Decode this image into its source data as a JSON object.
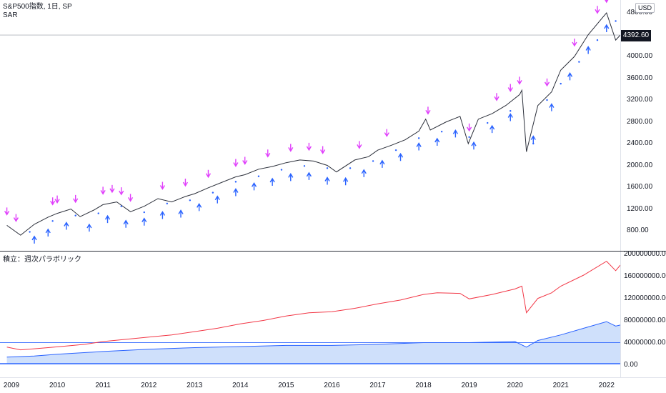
{
  "legend": {
    "symbol_line": "S&P500指数, 1日, SP",
    "indicator": "SAR"
  },
  "sub_legend": {
    "title": "積立：週次パラボリック"
  },
  "price_axis": {
    "currency_badge": "USD",
    "last_price": "4392.60",
    "ticks": [
      "4800.00",
      "4000.00",
      "3600.00",
      "3200.00",
      "2800.00",
      "2400.00",
      "2000.00",
      "1600.00",
      "1200.00",
      "800.00"
    ]
  },
  "sub_axis": {
    "ticks": [
      "200000000.00",
      "160000000.00",
      "120000000.00",
      "80000000.00",
      "40000000.00",
      "0.00"
    ]
  },
  "time_axis": {
    "ticks": [
      "2009",
      "2010",
      "2011",
      "2012",
      "2013",
      "2014",
      "2015",
      "2016",
      "2017",
      "2018",
      "2019",
      "2020",
      "2021",
      "2022"
    ]
  },
  "colors": {
    "price": "#2a2e39",
    "sar": "#2962ff",
    "buy": "#2962ff",
    "sell": "#e040fb",
    "equity": "#f23645",
    "invested": "#2962ff",
    "invested_fill": "#cfe0fb"
  },
  "chart_data": {
    "type": "line",
    "x_unit": "year",
    "price_series": {
      "x": [
        2008.9,
        2009.2,
        2009.5,
        2009.8,
        2010.0,
        2010.3,
        2010.5,
        2010.8,
        2011.0,
        2011.3,
        2011.6,
        2011.9,
        2012.2,
        2012.5,
        2012.8,
        2013.0,
        2013.3,
        2013.6,
        2013.9,
        2014.1,
        2014.4,
        2014.7,
        2015.0,
        2015.3,
        2015.6,
        2015.9,
        2016.1,
        2016.5,
        2016.8,
        2017.0,
        2017.3,
        2017.6,
        2017.9,
        2018.05,
        2018.15,
        2018.5,
        2018.8,
        2018.98,
        2019.2,
        2019.5,
        2019.8,
        2020.1,
        2020.15,
        2020.25,
        2020.5,
        2020.8,
        2021.0,
        2021.3,
        2021.6,
        2021.9,
        2022.0,
        2022.2,
        2022.3
      ],
      "values": [
        900,
        720,
        920,
        1050,
        1120,
        1200,
        1060,
        1180,
        1280,
        1330,
        1150,
        1250,
        1390,
        1330,
        1430,
        1480,
        1590,
        1690,
        1790,
        1830,
        1930,
        1980,
        2050,
        2100,
        2080,
        2000,
        1880,
        2100,
        2160,
        2280,
        2370,
        2470,
        2630,
        2850,
        2650,
        2800,
        2900,
        2400,
        2850,
        2950,
        3100,
        3300,
        3380,
        2250,
        3100,
        3350,
        3750,
        4000,
        4400,
        4700,
        4800,
        4300,
        4392
      ]
    },
    "sar_series": {
      "x": [
        2009.4,
        2009.9,
        2010.4,
        2010.9,
        2011.4,
        2011.9,
        2012.4,
        2012.9,
        2013.4,
        2013.9,
        2014.4,
        2014.9,
        2015.4,
        2015.9,
        2016.4,
        2016.9,
        2017.4,
        2017.9,
        2018.4,
        2019.0,
        2019.4,
        2019.9,
        2020.4,
        2020.7,
        2021.0,
        2021.4,
        2021.8,
        2022.2
      ],
      "values": [
        780,
        980,
        1080,
        1120,
        1250,
        1140,
        1300,
        1360,
        1500,
        1700,
        1800,
        1920,
        1990,
        1950,
        1950,
        2080,
        2280,
        2500,
        2620,
        2520,
        2780,
        3000,
        2400,
        3200,
        3500,
        3900,
        4300,
        4650
      ]
    },
    "buy_signals_x": [
      2009.5,
      2009.8,
      2010.2,
      2010.7,
      2011.1,
      2011.5,
      2011.9,
      2012.3,
      2012.7,
      2013.1,
      2013.5,
      2013.9,
      2014.3,
      2014.7,
      2015.1,
      2015.5,
      2015.9,
      2016.3,
      2016.7,
      2017.1,
      2017.5,
      2017.9,
      2018.3,
      2018.7,
      2019.1,
      2019.5,
      2019.9,
      2020.4,
      2020.8,
      2021.2,
      2021.6,
      2022.0
    ],
    "sell_signals_x": [
      2008.9,
      2009.1,
      2009.9,
      2010.0,
      2010.4,
      2011.0,
      2011.2,
      2011.4,
      2011.6,
      2012.3,
      2012.8,
      2013.3,
      2013.9,
      2014.1,
      2014.6,
      2015.1,
      2015.5,
      2015.8,
      2016.6,
      2017.2,
      2018.1,
      2019.0,
      2019.6,
      2019.9,
      2020.1,
      2020.7,
      2021.3,
      2021.8,
      2022.0
    ],
    "equity_series": {
      "name": "",
      "x": [
        2008.9,
        2009.2,
        2009.5,
        2009.8,
        2010.2,
        2010.6,
        2011.0,
        2011.5,
        2012.0,
        2012.5,
        2013.0,
        2013.5,
        2014.0,
        2014.5,
        2015.0,
        2015.5,
        2016.0,
        2016.5,
        2017.0,
        2017.5,
        2018.0,
        2018.3,
        2018.8,
        2019.0,
        2019.5,
        2020.0,
        2020.15,
        2020.25,
        2020.5,
        2020.8,
        2021.0,
        2021.5,
        2022.0,
        2022.2,
        2022.3
      ],
      "values": [
        30000000,
        25000000,
        27000000,
        29000000,
        32000000,
        35000000,
        40000000,
        44000000,
        48000000,
        52000000,
        58000000,
        64000000,
        72000000,
        78000000,
        86000000,
        92000000,
        94000000,
        100000000,
        108000000,
        115000000,
        125000000,
        128000000,
        127000000,
        117000000,
        125000000,
        135000000,
        140000000,
        92000000,
        118000000,
        128000000,
        140000000,
        160000000,
        185000000,
        168000000,
        178000000
      ]
    },
    "invested_series": {
      "x": [
        2008.9,
        2009.5,
        2010.0,
        2011.0,
        2012.0,
        2013.0,
        2014.0,
        2015.0,
        2016.0,
        2017.0,
        2018.0,
        2019.0,
        2020.0,
        2020.25,
        2020.5,
        2021.0,
        2021.5,
        2022.0,
        2022.2,
        2022.3
      ],
      "values": [
        12000000,
        14000000,
        17000000,
        22000000,
        26000000,
        29000000,
        31000000,
        33000000,
        33000000,
        35000000,
        38000000,
        38000000,
        40000000,
        30000000,
        42000000,
        52000000,
        64000000,
        76000000,
        68000000,
        70000000
      ]
    },
    "baseline_value": 38000000,
    "ylim_price": [
      600,
      4900
    ],
    "ylim_sub": [
      -5000000,
      200000000
    ],
    "xlim": [
      2008.75,
      2022.3
    ]
  }
}
